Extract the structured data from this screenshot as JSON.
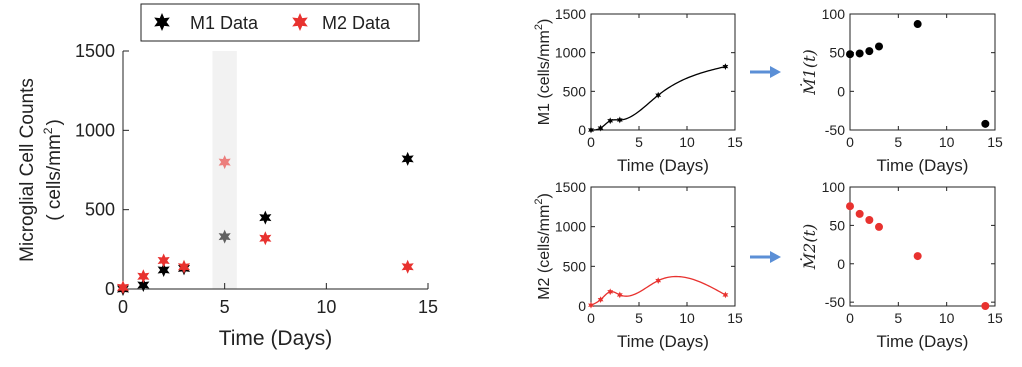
{
  "chart_data": [
    {
      "id": "main",
      "type": "scatter",
      "xlabel": "Time (Days)",
      "ylabel_line1": "Microglial Cell Counts",
      "ylabel_line2_pre": "( cells/mm",
      "ylabel_sup": "2",
      "ylabel_line2_post": ")",
      "xlim": [
        0,
        15
      ],
      "ylim": [
        0,
        1500
      ],
      "xticks": [
        0,
        5,
        10,
        15
      ],
      "yticks": [
        0,
        500,
        1000,
        1500
      ],
      "shaded_x": [
        4.4,
        5.6
      ],
      "legend": [
        {
          "label": "M1 Data",
          "color": "#000000"
        },
        {
          "label": "M2 Data",
          "color": "#e8322f"
        }
      ],
      "series": [
        {
          "name": "M1 Data",
          "color": "#000000",
          "x": [
            0,
            1,
            2,
            3,
            5,
            7,
            14
          ],
          "y": [
            0,
            25,
            120,
            130,
            330,
            450,
            820
          ]
        },
        {
          "name": "M2 Data",
          "color": "#e8322f",
          "x": [
            0,
            1,
            2,
            3,
            5,
            7,
            14
          ],
          "y": [
            10,
            80,
            180,
            140,
            800,
            320,
            140
          ]
        }
      ]
    },
    {
      "id": "m1fit",
      "type": "line",
      "xlabel": "Time (Days)",
      "ylabel_pre": "M1 (cells/mm",
      "ylabel_sup": "2",
      "ylabel_post": ")",
      "xlim": [
        0,
        15
      ],
      "ylim": [
        0,
        1500
      ],
      "xticks": [
        0,
        5,
        10,
        15
      ],
      "yticks": [
        0,
        500,
        1000,
        1500
      ],
      "series": [
        {
          "color": "#000000",
          "x": [
            0,
            1,
            2,
            3,
            7,
            14
          ],
          "y": [
            0,
            25,
            120,
            130,
            450,
            820
          ]
        }
      ]
    },
    {
      "id": "m2fit",
      "type": "line",
      "xlabel": "Time (Days)",
      "ylabel_pre": "M2 (cells/mm",
      "ylabel_sup": "2",
      "ylabel_post": ")",
      "xlim": [
        0,
        15
      ],
      "ylim": [
        0,
        1500
      ],
      "xticks": [
        0,
        5,
        10,
        15
      ],
      "yticks": [
        0,
        500,
        1000,
        1500
      ],
      "series": [
        {
          "color": "#e8322f",
          "x": [
            0,
            1,
            2,
            3,
            7,
            14
          ],
          "y": [
            10,
            80,
            180,
            140,
            320,
            140
          ]
        }
      ]
    },
    {
      "id": "m1dot",
      "type": "scatter",
      "xlabel": "Time (Days)",
      "ylabel": "Ṁ1(t)",
      "xlim": [
        0,
        15
      ],
      "ylim": [
        -50,
        100
      ],
      "xticks": [
        0,
        5,
        10,
        15
      ],
      "yticks": [
        -50,
        0,
        50,
        100
      ],
      "series": [
        {
          "color": "#000000",
          "x": [
            0,
            1,
            2,
            3,
            7,
            14
          ],
          "y": [
            48,
            49,
            52,
            58,
            87,
            -42
          ]
        }
      ]
    },
    {
      "id": "m2dot",
      "type": "scatter",
      "xlabel": "Time (Days)",
      "ylabel": "Ṁ2(t)",
      "xlim": [
        0,
        15
      ],
      "ylim": [
        -55,
        100
      ],
      "xticks": [
        0,
        5,
        10,
        15
      ],
      "yticks": [
        -50,
        0,
        50,
        100
      ],
      "series": [
        {
          "color": "#e8322f",
          "x": [
            0,
            1,
            2,
            3,
            7,
            14
          ],
          "y": [
            75,
            65,
            57,
            48,
            10,
            -55
          ]
        }
      ]
    }
  ],
  "colors": {
    "m1": "#000000",
    "m2": "#e8322f",
    "arrow": "#5b8fd6",
    "shade": "#f2f2f2",
    "axis": "#222222"
  }
}
